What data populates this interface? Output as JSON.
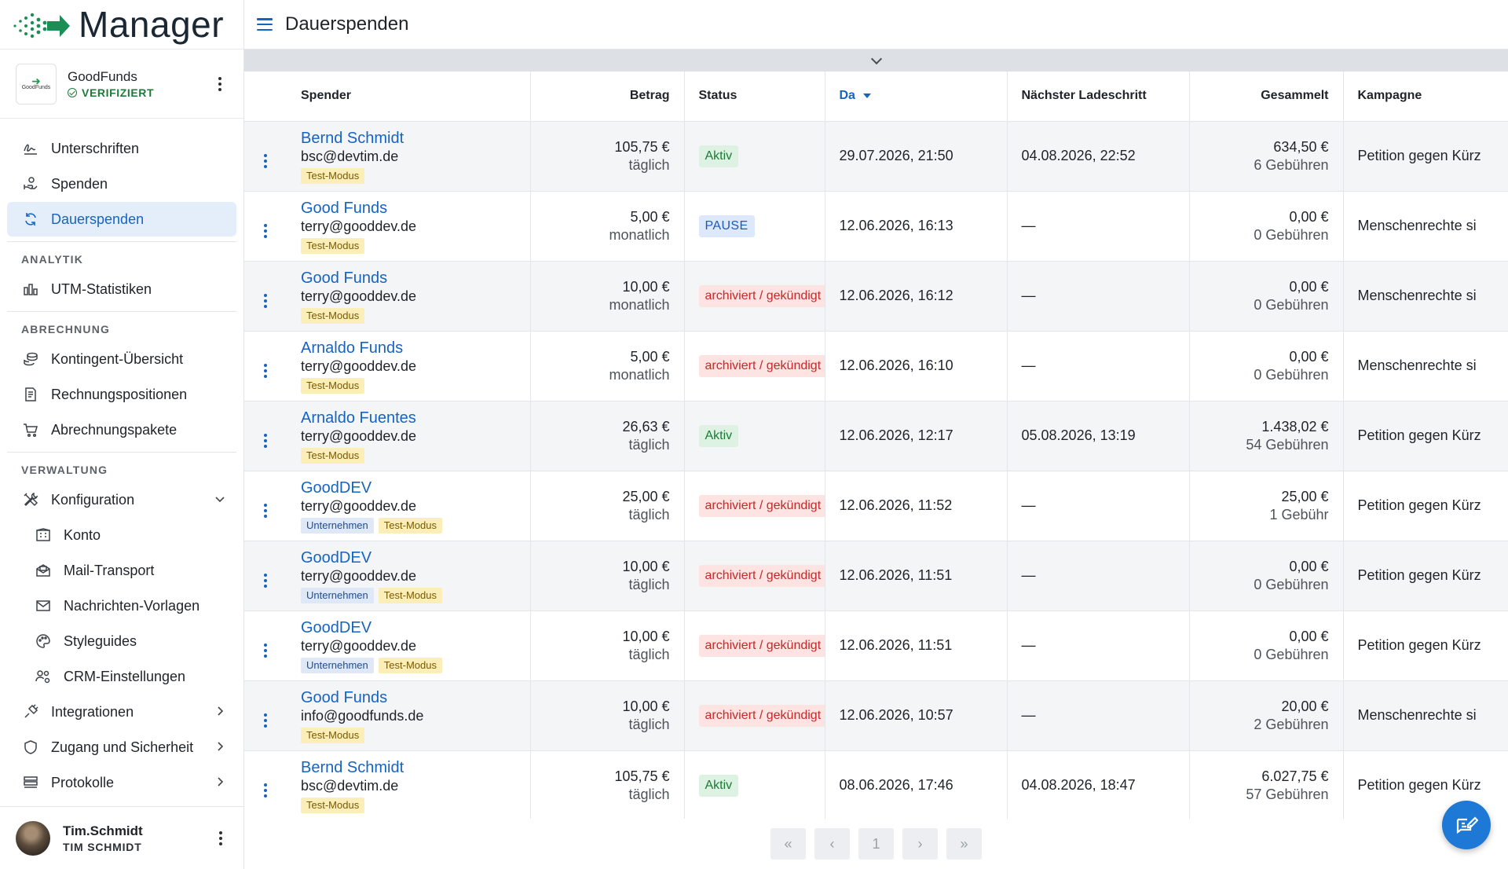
{
  "app": {
    "logo_text": "Manager",
    "page_title": "Dauerspenden"
  },
  "org": {
    "name": "GoodFunds",
    "status": "VERIFIZIERT",
    "logo_caption": "GoodFunds"
  },
  "nav": {
    "main": [
      {
        "label": "Unterschriften",
        "icon": "signature-icon"
      },
      {
        "label": "Spenden",
        "icon": "donation-hand-icon"
      },
      {
        "label": "Dauerspenden",
        "icon": "refresh-icon",
        "active": true
      }
    ],
    "sec_analytik": "ANALYTIK",
    "analytik": [
      {
        "label": "UTM-Statistiken",
        "icon": "bar-chart-icon"
      }
    ],
    "sec_abrechnung": "ABRECHNUNG",
    "abrechnung": [
      {
        "label": "Kontingent-Übersicht",
        "icon": "coins-icon"
      },
      {
        "label": "Rechnungspositionen",
        "icon": "invoice-icon"
      },
      {
        "label": "Abrechnungspakete",
        "icon": "cart-icon"
      }
    ],
    "sec_verwaltung": "VERWALTUNG",
    "verwaltung": [
      {
        "label": "Konfiguration",
        "icon": "tools-icon"
      },
      {
        "label": "Konto",
        "icon": "building-icon"
      },
      {
        "label": "Mail-Transport",
        "icon": "mail-open-icon"
      },
      {
        "label": "Nachrichten-Vorlagen",
        "icon": "envelope-icon"
      },
      {
        "label": "Styleguides",
        "icon": "palette-icon"
      },
      {
        "label": "CRM-Einstellungen",
        "icon": "users-gear-icon"
      },
      {
        "label": "Integrationen",
        "icon": "plug-icon"
      },
      {
        "label": "Zugang und Sicherheit",
        "icon": "shield-icon"
      },
      {
        "label": "Protokolle",
        "icon": "log-icon"
      }
    ]
  },
  "user": {
    "name": "Tim.Schmidt",
    "sub": "TIM SCHMIDT"
  },
  "table": {
    "headers": {
      "spender": "Spender",
      "betrag": "Betrag",
      "status": "Status",
      "da": "Da",
      "naechster": "Nächster Ladeschritt",
      "gesammelt": "Gesammelt",
      "kampagne": "Kampagne"
    },
    "rows": [
      {
        "name": "Bernd Schmidt",
        "email": "bsc@devtim.de",
        "tags": [
          "Test-Modus"
        ],
        "amount": "105,75 €",
        "interval": "täglich",
        "status": "Aktiv",
        "status_kind": "aktiv",
        "date": "29.07.2026, 21:50",
        "next": "04.08.2026, 22:52",
        "total": "634,50 €",
        "fees": "6 Gebühren",
        "campaign": "Petition gegen Kürz"
      },
      {
        "name": "Good Funds",
        "email": "terry@gooddev.de",
        "tags": [
          "Test-Modus"
        ],
        "amount": "5,00 €",
        "interval": "monatlich",
        "status": "PAUSE",
        "status_kind": "pause",
        "date": "12.06.2026, 16:13",
        "next": "—",
        "total": "0,00 €",
        "fees": "0 Gebühren",
        "campaign": "Menschenrechte si"
      },
      {
        "name": "Good Funds",
        "email": "terry@gooddev.de",
        "tags": [
          "Test-Modus"
        ],
        "amount": "10,00 €",
        "interval": "monatlich",
        "status": "archiviert / gekündigt",
        "status_kind": "arch",
        "date": "12.06.2026, 16:12",
        "next": "—",
        "total": "0,00 €",
        "fees": "0 Gebühren",
        "campaign": "Menschenrechte si"
      },
      {
        "name": "Arnaldo Funds",
        "email": "terry@gooddev.de",
        "tags": [
          "Test-Modus"
        ],
        "amount": "5,00 €",
        "interval": "monatlich",
        "status": "archiviert / gekündigt",
        "status_kind": "arch",
        "date": "12.06.2026, 16:10",
        "next": "—",
        "total": "0,00 €",
        "fees": "0 Gebühren",
        "campaign": "Menschenrechte si"
      },
      {
        "name": "Arnaldo Fuentes",
        "email": "terry@gooddev.de",
        "tags": [
          "Test-Modus"
        ],
        "amount": "26,63 €",
        "interval": "täglich",
        "status": "Aktiv",
        "status_kind": "aktiv",
        "date": "12.06.2026, 12:17",
        "next": "05.08.2026, 13:19",
        "total": "1.438,02 €",
        "fees": "54 Gebühren",
        "campaign": "Petition gegen Kürz"
      },
      {
        "name": "GoodDEV",
        "email": "terry@gooddev.de",
        "tags": [
          "Unternehmen",
          "Test-Modus"
        ],
        "amount": "25,00 €",
        "interval": "täglich",
        "status": "archiviert / gekündigt",
        "status_kind": "arch",
        "date": "12.06.2026, 11:52",
        "next": "—",
        "total": "25,00 €",
        "fees": "1 Gebühr",
        "campaign": "Petition gegen Kürz"
      },
      {
        "name": "GoodDEV",
        "email": "terry@gooddev.de",
        "tags": [
          "Unternehmen",
          "Test-Modus"
        ],
        "amount": "10,00 €",
        "interval": "täglich",
        "status": "archiviert / gekündigt",
        "status_kind": "arch",
        "date": "12.06.2026, 11:51",
        "next": "—",
        "total": "0,00 €",
        "fees": "0 Gebühren",
        "campaign": "Petition gegen Kürz"
      },
      {
        "name": "GoodDEV",
        "email": "terry@gooddev.de",
        "tags": [
          "Unternehmen",
          "Test-Modus"
        ],
        "amount": "10,00 €",
        "interval": "täglich",
        "status": "archiviert / gekündigt",
        "status_kind": "arch",
        "date": "12.06.2026, 11:51",
        "next": "—",
        "total": "0,00 €",
        "fees": "0 Gebühren",
        "campaign": "Petition gegen Kürz"
      },
      {
        "name": "Good Funds",
        "email": "info@goodfunds.de",
        "tags": [
          "Test-Modus"
        ],
        "amount": "10,00 €",
        "interval": "täglich",
        "status": "archiviert / gekündigt",
        "status_kind": "arch",
        "date": "12.06.2026, 10:57",
        "next": "—",
        "total": "20,00 €",
        "fees": "2 Gebühren",
        "campaign": "Menschenrechte si"
      },
      {
        "name": "Bernd Schmidt",
        "email": "bsc@devtim.de",
        "tags": [
          "Test-Modus"
        ],
        "amount": "105,75 €",
        "interval": "täglich",
        "status": "Aktiv",
        "status_kind": "aktiv",
        "date": "08.06.2026, 17:46",
        "next": "04.08.2026, 18:47",
        "total": "6.027,75 €",
        "fees": "57 Gebühren",
        "campaign": "Petition gegen Kürz"
      }
    ]
  },
  "pager": {
    "first": "«",
    "prev": "‹",
    "page": "1",
    "next": "›",
    "last": "»"
  },
  "colors": {
    "accent": "#1664c0",
    "fab": "#1e78d6",
    "brand_green": "#1a9c4c"
  }
}
